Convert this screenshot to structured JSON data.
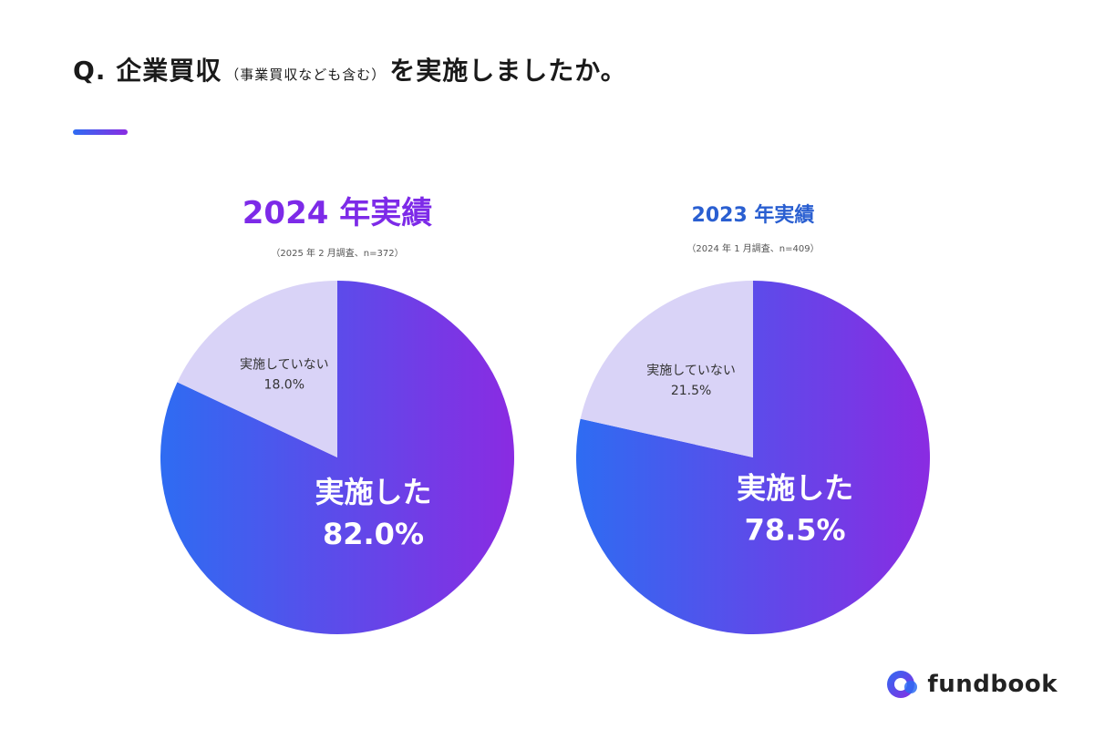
{
  "header": {
    "question_prefix": "Q. 企業買収",
    "question_note": "（事業買収なども含む）",
    "question_suffix": "を実施しましたか。"
  },
  "colors": {
    "gradient_start": "#2e6cf2",
    "gradient_end": "#8a2be2",
    "minor_slice": "#d9d3f7",
    "title_2024": "#7d2ae8",
    "title_2023": "#2a5fd1"
  },
  "chart_data": [
    {
      "type": "pie",
      "title": "2024 年実績",
      "subtitle": "（2025 年 2 月調査、n=372）",
      "slices": [
        {
          "label": "実施した",
          "value": 82.0,
          "display": "82.0%"
        },
        {
          "label": "実施していない",
          "value": 18.0,
          "display": "18.0%"
        }
      ]
    },
    {
      "type": "pie",
      "title": "2023 年実績",
      "subtitle": "（2024 年 1 月調査、n=409）",
      "slices": [
        {
          "label": "実施した",
          "value": 78.5,
          "display": "78.5%"
        },
        {
          "label": "実施していない",
          "value": 21.5,
          "display": "21.5%"
        }
      ]
    }
  ],
  "logo": {
    "text": "fundbook"
  }
}
